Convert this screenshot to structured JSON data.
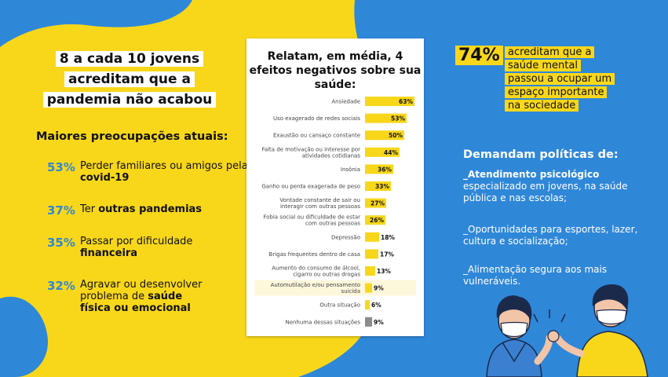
{
  "headline": [
    "8 a cada 10 jovens",
    "acreditam que a",
    "pandemia não acabou"
  ],
  "concerns_title": "Maiores preocupações atuais:",
  "concerns": [
    {
      "pct": "53%",
      "text": "Perder familiares ou amigos pela ",
      "bold": "covid-19"
    },
    {
      "pct": "37%",
      "text": "Ter ",
      "bold": "outras pandemias"
    },
    {
      "pct": "35%",
      "text": "Passar por dificuldade ",
      "bold": "financeira"
    },
    {
      "pct": "32%",
      "text": "Agravar ou desenvolver problema de ",
      "bold": "saúde física ou emocional"
    }
  ],
  "chart_title": "Relatam, em média, 4 efeitos negativos sobre sua saúde:",
  "chart_data": {
    "type": "bar",
    "orientation": "horizontal",
    "title": "Relatam, em média, 4 efeitos negativos sobre sua saúde:",
    "xlim": [
      0,
      100
    ],
    "categories": [
      [
        "Ansiedade"
      ],
      [
        "Uso exagerado de redes sociais"
      ],
      [
        "Exaustão ou cansaço constante"
      ],
      [
        "Falta de motivação ou interesse por",
        "atividades cotidianas"
      ],
      [
        "Insônia"
      ],
      [
        "Ganho ou perda exagerada de peso"
      ],
      [
        "Vontade constante de sair ou",
        "interagir com outras pessoas"
      ],
      [
        "Fobia social ou dificuldade de estar",
        "com outras pessoas"
      ],
      [
        "Depressão"
      ],
      [
        "Brigas frequentes dentro de casa"
      ],
      [
        "Aumento do consumo de álcool,",
        "cigarro ou outras drogas"
      ],
      [
        "Automutilação e/ou pensamento",
        "suicida"
      ],
      [
        "Outra situação"
      ],
      [
        "Nenhuma dessas situações"
      ]
    ],
    "values": [
      63,
      53,
      50,
      44,
      36,
      33,
      27,
      26,
      18,
      17,
      13,
      9,
      6,
      9
    ],
    "labels": [
      "63%",
      "53%",
      "50%",
      "44%",
      "36%",
      "33%",
      "27%",
      "26%",
      "18%",
      "17%",
      "13%",
      "9%",
      "6%",
      "9%"
    ],
    "bar_color": "#f8d71b",
    "last_bar_color": "#8c8c8c"
  },
  "stat": {
    "number": "74%",
    "lines": [
      "acreditam que a",
      "saúde mental",
      "passou a ocupar um",
      "espaço importante",
      "na sociedade"
    ]
  },
  "policy_title": "Demandam políticas de:",
  "policies": [
    {
      "bold": "_Atendimento psicológico",
      "text": " especializado em jovens, na saúde pública e nas escolas;"
    },
    {
      "bold": "",
      "text": "_Oportunidades para esportes, lazer, cultura e socialização;"
    },
    {
      "bold": "",
      "text": "_Alimentação segura aos mais vulneráveis."
    }
  ],
  "colors": {
    "yellow": "#f8d71b",
    "blue": "#2f87d8",
    "white": "#ffffff"
  }
}
